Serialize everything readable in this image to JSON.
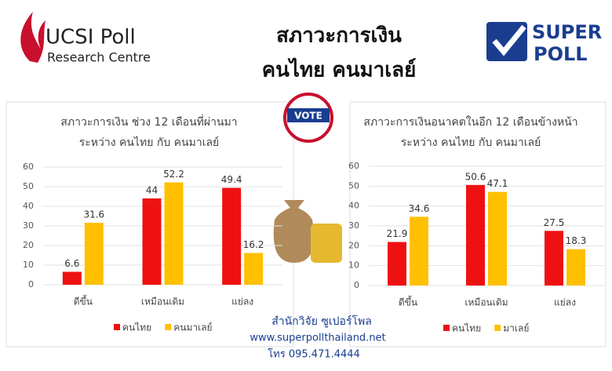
{
  "header": {
    "left_logo": [
      "UCSI Poll",
      "Research Centre"
    ],
    "title": [
      "สภาวะการเงิน",
      "คนไทย คนมาเลย์"
    ],
    "right_logo": [
      "SUPER",
      "POLL"
    ],
    "badge": "VOTE"
  },
  "chart_data": [
    {
      "type": "bar",
      "title": "สภาวะการเงิน ช่วง 12 เดือนที่ผ่านมา",
      "subtitle": "ระหว่าง คนไทย กับ คนมาเลย์",
      "categories": [
        "ดีขึ้น",
        "เหมือนเดิม",
        "แย่ลง"
      ],
      "series": [
        {
          "name": "คนไทย",
          "color": "#ee1111",
          "values": [
            6.6,
            44,
            49.4
          ]
        },
        {
          "name": "คนมาเลย์",
          "color": "#ffc000",
          "values": [
            31.6,
            52.2,
            16.2
          ]
        }
      ],
      "ylim": [
        0,
        60
      ],
      "yticks": [
        0,
        10,
        20,
        30,
        40,
        50,
        60
      ],
      "grid": true,
      "legend": "bottom"
    },
    {
      "type": "bar",
      "title": "สภาวะการเงินอนาคตในอีก 12 เดือนข้างหน้า",
      "subtitle": "ระหว่าง คนไทย กับ คนมาเลย์",
      "categories": [
        "ดีขึ้น",
        "เหมือนเดิม",
        "แย่ลง"
      ],
      "series": [
        {
          "name": "คนไทย",
          "color": "#ee1111",
          "values": [
            21.9,
            50.6,
            27.5
          ]
        },
        {
          "name": "มาเลย์",
          "color": "#ffc000",
          "values": [
            34.6,
            47.1,
            18.3
          ]
        }
      ],
      "ylim": [
        0,
        60
      ],
      "yticks": [
        0,
        10,
        20,
        30,
        40,
        50,
        60
      ],
      "grid": true,
      "legend": "bottom"
    }
  ],
  "footer": [
    "สำนักวิจัย ซูเปอร์โพล",
    "www.superpollthailand.net",
    "โทร 095.471.4444"
  ]
}
